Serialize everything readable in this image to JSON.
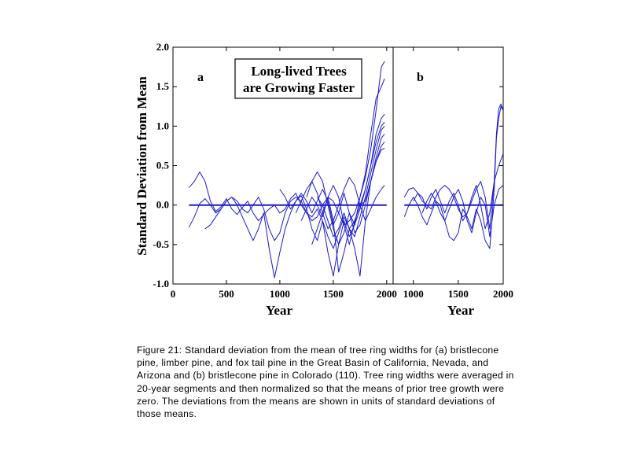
{
  "figure": {
    "caption": "Figure 21: Standard deviation from the mean of tree ring widths for (a) bristlecone pine, limber pine, and fox tail pine in the Great Basin of California, Nevada, and Arizona and (b) bristlecone pine in Colorado (110). Tree ring widths were averaged in 20-year segments and then normalized so that the means of prior tree growth were zero. The deviations from the means are shown in units of standard deviations of those means.",
    "line_color": "#1a1acc",
    "axis_color": "#000000"
  },
  "chart_data": [
    {
      "type": "line",
      "panel_label": "a",
      "annotation": [
        "Long-lived Trees",
        "are Growing Faster"
      ],
      "xlabel": "Year",
      "ylabel": "Standard Deviation from Mean",
      "xlim": [
        0,
        2060
      ],
      "ylim": [
        -1.0,
        2.0
      ],
      "xticks": [
        0,
        500,
        1000,
        1500,
        2000
      ],
      "yticks": [
        -1.0,
        -0.5,
        0.0,
        0.5,
        1.0,
        1.5,
        2.0
      ],
      "ytick_labels": [
        "-1.0",
        "-0.5",
        "0.0",
        "0.5",
        "1.0",
        "1.5",
        "2.0"
      ],
      "grid": false,
      "series": [
        {
          "x": [
            150,
            2000
          ],
          "y": [
            0.0,
            0.0
          ]
        },
        {
          "x": [
            150,
            200,
            250,
            300,
            350,
            400,
            450,
            500,
            550,
            600,
            650,
            700,
            750,
            800,
            850,
            900,
            950,
            1000,
            1050,
            1100,
            1150,
            1200,
            1250,
            1300,
            1350,
            1400,
            1450,
            1500,
            1550,
            1600,
            1650,
            1700,
            1750,
            1800,
            1850,
            1900,
            1950,
            1980
          ],
          "y": [
            0.22,
            0.3,
            0.42,
            0.3,
            0.05,
            -0.08,
            -0.02,
            0.08,
            -0.05,
            -0.12,
            -0.03,
            0.05,
            -0.1,
            -0.2,
            -0.12,
            -0.05,
            0.0,
            -0.1,
            -0.05,
            0.08,
            0.15,
            0.0,
            -0.1,
            -0.2,
            -0.15,
            0.0,
            0.1,
            0.05,
            -0.1,
            -0.25,
            -0.2,
            -0.1,
            0.1,
            0.35,
            0.7,
            1.2,
            1.75,
            1.82
          ]
        },
        {
          "x": [
            150,
            200,
            250,
            300,
            350,
            400,
            450,
            500,
            550,
            600,
            650,
            700,
            750,
            800,
            850,
            900,
            950,
            1000,
            1050,
            1100,
            1150,
            1200,
            1250,
            1300,
            1350,
            1400,
            1450,
            1500,
            1550,
            1600,
            1650,
            1700,
            1750,
            1800,
            1850,
            1900,
            1950,
            1980
          ],
          "y": [
            -0.28,
            -0.15,
            0.02,
            0.08,
            0.0,
            -0.1,
            -0.05,
            0.05,
            0.1,
            0.0,
            -0.15,
            -0.3,
            -0.45,
            -0.3,
            -0.1,
            -0.55,
            -0.92,
            -0.6,
            -0.3,
            -0.1,
            0.05,
            0.12,
            -0.05,
            -0.3,
            -0.45,
            -0.2,
            -0.6,
            -0.9,
            -0.5,
            -0.2,
            -0.4,
            -0.25,
            0.1,
            0.4,
            0.9,
            1.35,
            1.5,
            1.6
          ]
        },
        {
          "x": [
            300,
            350,
            400,
            450,
            500,
            550,
            600,
            650,
            700,
            750,
            800,
            850,
            900,
            950,
            1000,
            1050,
            1100,
            1150,
            1200,
            1250,
            1300,
            1350,
            1400,
            1450,
            1500,
            1550,
            1600,
            1650,
            1700,
            1750,
            1800,
            1850,
            1900,
            1950,
            1980
          ],
          "y": [
            -0.3,
            -0.25,
            -0.15,
            -0.05,
            0.05,
            0.1,
            0.05,
            -0.05,
            -0.1,
            0.0,
            0.1,
            -0.05,
            -0.3,
            -0.45,
            -0.35,
            -0.1,
            0.05,
            0.1,
            0.05,
            -0.1,
            -0.15,
            -0.05,
            -0.2,
            -0.4,
            -0.55,
            -0.35,
            -0.15,
            -0.3,
            -0.2,
            0.0,
            0.2,
            0.5,
            0.9,
            1.1,
            1.15
          ]
        },
        {
          "x": [
            1250,
            1300,
            1350,
            1400,
            1450,
            1500,
            1550,
            1600,
            1650,
            1700,
            1750,
            1800,
            1850,
            1900,
            1950,
            1980
          ],
          "y": [
            0.1,
            0.3,
            0.42,
            0.3,
            0.0,
            -0.3,
            -0.5,
            -0.35,
            -0.1,
            -0.25,
            -0.05,
            0.2,
            0.5,
            0.8,
            1.0,
            1.05
          ]
        },
        {
          "x": [
            1300,
            1350,
            1400,
            1450,
            1500,
            1550,
            1600,
            1650,
            1700,
            1750,
            1800,
            1850,
            1900,
            1950,
            1980
          ],
          "y": [
            -0.5,
            -0.3,
            -0.1,
            0.1,
            -0.2,
            -0.85,
            -0.6,
            -0.3,
            -0.55,
            -0.9,
            -0.2,
            0.3,
            0.6,
            0.85,
            0.9
          ]
        },
        {
          "x": [
            1000,
            1050,
            1100,
            1150,
            1200,
            1250,
            1300,
            1350,
            1400,
            1450,
            1500,
            1550,
            1600,
            1650,
            1700,
            1750,
            1800,
            1850,
            1900,
            1950,
            1980
          ],
          "y": [
            0.2,
            0.1,
            -0.05,
            0.05,
            0.15,
            0.05,
            -0.1,
            0.05,
            0.2,
            0.05,
            -0.25,
            -0.1,
            0.15,
            -0.1,
            -0.35,
            -0.25,
            0.0,
            0.3,
            0.55,
            0.7,
            0.72
          ]
        },
        {
          "x": [
            1200,
            1250,
            1300,
            1350,
            1400,
            1450,
            1500,
            1550,
            1600,
            1650,
            1700,
            1750,
            1800,
            1850,
            1900,
            1950,
            1980
          ],
          "y": [
            -0.2,
            -0.05,
            0.1,
            0.0,
            -0.15,
            0.1,
            0.25,
            0.1,
            -0.25,
            -0.5,
            -0.2,
            0.0,
            -0.2,
            -0.05,
            0.1,
            0.2,
            0.25
          ]
        },
        {
          "x": [
            1350,
            1400,
            1450,
            1500,
            1550,
            1600,
            1650,
            1700,
            1750,
            1800,
            1850,
            1900,
            1950,
            1980
          ],
          "y": [
            0.1,
            0.0,
            -0.2,
            -0.4,
            -0.3,
            -0.1,
            -0.3,
            -0.4,
            -0.15,
            0.1,
            0.4,
            0.7,
            0.95,
            1.0
          ]
        },
        {
          "x": [
            1150,
            1200,
            1250,
            1300,
            1350,
            1400,
            1450,
            1500,
            1550,
            1600,
            1650,
            1700,
            1750,
            1800,
            1850,
            1900,
            1950,
            1980
          ],
          "y": [
            -0.1,
            0.05,
            0.2,
            0.3,
            0.15,
            -0.1,
            -0.3,
            -0.2,
            0.0,
            0.2,
            0.35,
            0.25,
            0.0,
            0.05,
            0.3,
            0.55,
            0.75,
            0.8
          ]
        }
      ]
    },
    {
      "type": "line",
      "panel_label": "b",
      "xlabel": "Year",
      "xlim": [
        775,
        2000
      ],
      "ylim": [
        -1.0,
        2.0
      ],
      "xticks": [
        1000,
        1500,
        2000
      ],
      "grid": false,
      "series": [
        {
          "x": [
            900,
            2000
          ],
          "y": [
            0.0,
            0.0
          ]
        },
        {
          "x": [
            900,
            950,
            1000,
            1050,
            1100,
            1150,
            1200,
            1250,
            1300,
            1350,
            1400,
            1450,
            1500,
            1550,
            1600,
            1650,
            1700,
            1750,
            1800,
            1850,
            1900,
            1925,
            1950,
            1975,
            2000
          ],
          "y": [
            0.1,
            0.2,
            0.22,
            0.15,
            0.05,
            0.0,
            -0.05,
            0.1,
            0.2,
            0.25,
            0.2,
            0.1,
            -0.05,
            -0.15,
            -0.1,
            0.05,
            0.2,
            0.3,
            0.1,
            -0.3,
            0.3,
            0.9,
            1.22,
            1.28,
            1.2
          ]
        },
        {
          "x": [
            900,
            950,
            1000,
            1050,
            1100,
            1150,
            1200,
            1250,
            1300,
            1350,
            1400,
            1450,
            1500,
            1550,
            1600,
            1650,
            1700,
            1750,
            1800,
            1850,
            1900,
            1925,
            1950,
            1975,
            2000
          ],
          "y": [
            -0.15,
            0.0,
            0.1,
            0.0,
            -0.15,
            -0.25,
            -0.1,
            0.05,
            0.0,
            -0.2,
            -0.4,
            -0.45,
            -0.35,
            -0.05,
            -0.15,
            -0.3,
            -0.05,
            -0.2,
            -0.45,
            -0.55,
            0.2,
            0.85,
            1.1,
            1.25,
            1.2
          ]
        },
        {
          "x": [
            1000,
            1050,
            1100,
            1150,
            1200,
            1250,
            1300,
            1350,
            1400,
            1450,
            1500,
            1550,
            1600,
            1650,
            1700,
            1750,
            1800,
            1850,
            1900,
            1950,
            2000
          ],
          "y": [
            0.05,
            0.15,
            0.1,
            -0.05,
            0.1,
            0.2,
            0.05,
            -0.1,
            0.05,
            0.15,
            0.0,
            -0.2,
            -0.1,
            0.1,
            0.25,
            0.0,
            -0.3,
            -0.1,
            0.3,
            0.5,
            0.65
          ]
        },
        {
          "x": [
            1100,
            1150,
            1200,
            1250,
            1300,
            1350,
            1400,
            1450,
            1500,
            1550,
            1600,
            1650,
            1700,
            1750,
            1800,
            1850,
            1900,
            1950,
            2000
          ],
          "y": [
            -0.1,
            0.05,
            0.15,
            0.05,
            -0.1,
            -0.2,
            -0.05,
            0.1,
            0.2,
            0.05,
            -0.2,
            -0.35,
            -0.1,
            0.1,
            0.0,
            -0.4,
            0.0,
            0.2,
            0.25
          ]
        }
      ]
    }
  ]
}
